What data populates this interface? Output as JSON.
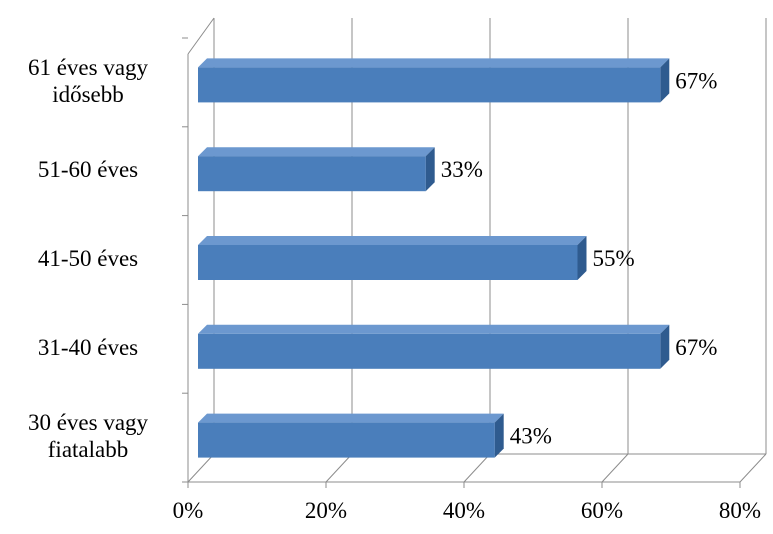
{
  "chart_data": {
    "type": "bar",
    "orientation": "horizontal",
    "three_d": true,
    "categories": [
      [
        "61 éves vagy",
        "idősebb"
      ],
      [
        "51-60 éves"
      ],
      [
        "41-50 éves"
      ],
      [
        "31-40 éves"
      ],
      [
        "30 éves vagy",
        "fiatalabb"
      ]
    ],
    "values": [
      67,
      33,
      55,
      67,
      43
    ],
    "data_labels": [
      "67%",
      "33%",
      "55%",
      "67%",
      "43%"
    ],
    "xlim": [
      0,
      80
    ],
    "xticks": [
      0,
      20,
      40,
      60,
      80
    ],
    "xtick_labels": [
      "0%",
      "20%",
      "40%",
      "60%",
      "80%"
    ],
    "grid": true,
    "legend": "none",
    "colors": {
      "bar_front": "#4a7ebb",
      "bar_top": "#6c98cf",
      "bar_side": "#2f5b8f",
      "gridline": "#8c8c8c"
    }
  }
}
